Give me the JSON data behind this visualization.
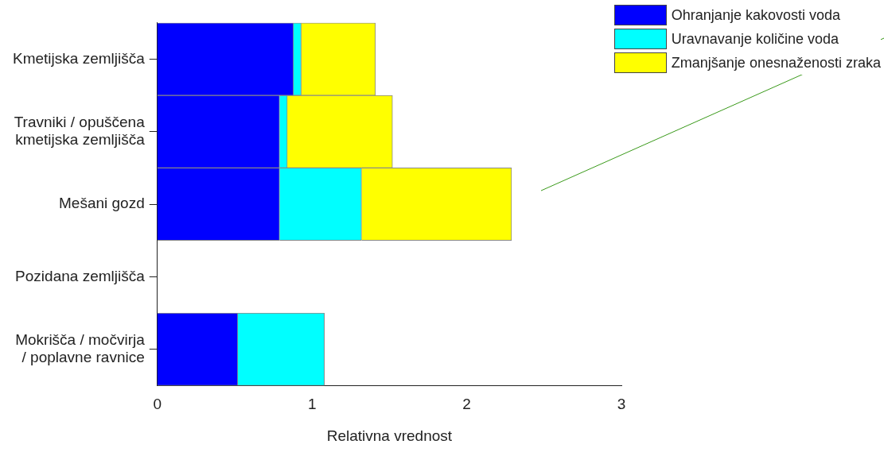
{
  "chart_data": {
    "type": "bar",
    "orientation": "horizontal",
    "stacked": true,
    "xlabel": "Relativna vrednost",
    "categories": [
      "Kmetijska zemljišča",
      "Travniki / opuščena kmetijska zemljišča",
      "Mešani gozd",
      "Pozidana zemljišča",
      "Mokrišča / močvirja / poplavne ravnice"
    ],
    "series": [
      {
        "name": "Ohranjanje kakovosti voda",
        "color": "#0000ff",
        "values": [
          0.88,
          0.79,
          0.79,
          0,
          0.52
        ]
      },
      {
        "name": "Uravnavanje količine voda",
        "color": "#00ffff",
        "values": [
          0.05,
          0.05,
          0.53,
          0,
          0.56
        ]
      },
      {
        "name": "Zmanjšanje onesnaženosti zraka",
        "color": "#ffff00",
        "values": [
          0.48,
          0.68,
          0.97,
          0,
          0
        ]
      }
    ],
    "xlim": [
      0,
      3
    ],
    "xticks": [
      0,
      1,
      2,
      3
    ],
    "grid": false,
    "legend": "top right"
  }
}
